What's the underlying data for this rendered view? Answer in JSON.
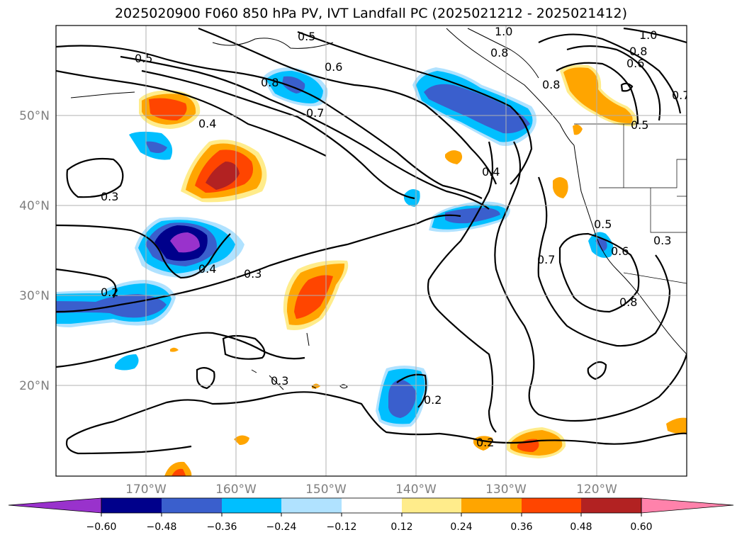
{
  "title": "2025020900 F060 850 hPa PV, IVT Landfall PC (2025021212 - 2025021412)",
  "map": {
    "lon_range": [
      -180,
      -110
    ],
    "lat_range": [
      10,
      60
    ],
    "lat_labels": [
      "20°N",
      "30°N",
      "40°N",
      "50°N"
    ],
    "lon_labels": [
      "170°W",
      "160°W",
      "150°W",
      "140°W",
      "130°W",
      "120°W"
    ],
    "contour_labels": [
      "0.5",
      "0.5",
      "0.6",
      "0.8",
      "0.7",
      "0.4",
      "0.3",
      "0.4",
      "0.3",
      "0.2",
      "0.3",
      "0.2",
      "0.4",
      "0.2",
      "1.0",
      "1.0",
      "0.8",
      "0.8",
      "0.6",
      "0.8",
      "0.7",
      "0.5",
      "0.5",
      "0.6",
      "0.7",
      "0.8",
      "0.3"
    ]
  },
  "colorbar": {
    "ticks": [
      "−0.60",
      "−0.48",
      "−0.36",
      "−0.24",
      "−0.12",
      "0.12",
      "0.24",
      "0.36",
      "0.48",
      "0.60"
    ],
    "colors": [
      "#9932cc",
      "#00008b",
      "#3a5fcd",
      "#00bfff",
      "#b0e2ff",
      "#ffffff",
      "#ffec8b",
      "#ffa500",
      "#ff4500",
      "#b22222",
      "#ff82ab"
    ]
  }
}
